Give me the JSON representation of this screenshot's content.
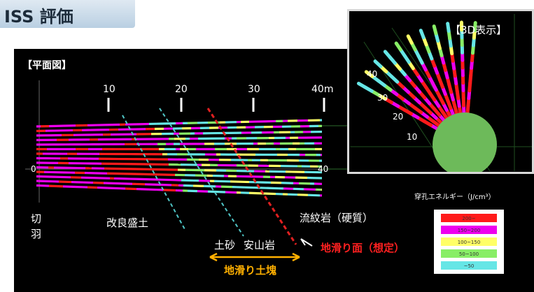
{
  "header": {
    "title": "ISS 評価"
  },
  "plan": {
    "label": "【平面図】",
    "scale_ticks": [
      "10",
      "20",
      "30",
      "40m"
    ],
    "side_label_1": "切",
    "side_label_2": "羽",
    "zero_label": "0",
    "forty_label": "40",
    "improved_fill": "改良盛土",
    "soil_sand": "土砂",
    "andesite": "安山岩",
    "rhyolite": "流紋岩（硬質）",
    "slip_surface": "地滑り面（想定）",
    "landslide_block": "地滑り土塊"
  },
  "inset": {
    "label": "【3D表示】",
    "ticks": [
      "40",
      "30",
      "20",
      "10"
    ]
  },
  "legend": {
    "title": "穿孔エネルギー（J/cm³）",
    "items": [
      {
        "label": "200~",
        "color": "#ff1a1a"
      },
      {
        "label": "150~200",
        "color": "#ee00ee"
      },
      {
        "label": "100~150",
        "color": "#ffff66"
      },
      {
        "label": "50~100",
        "color": "#88ee66"
      },
      {
        "label": "~50",
        "color": "#66e6e6"
      }
    ]
  },
  "colors": {
    "red": "#ff1a1a",
    "magenta": "#ee00ee",
    "yellow": "#ffff66",
    "green": "#88ee66",
    "cyan": "#66e6e6"
  }
}
